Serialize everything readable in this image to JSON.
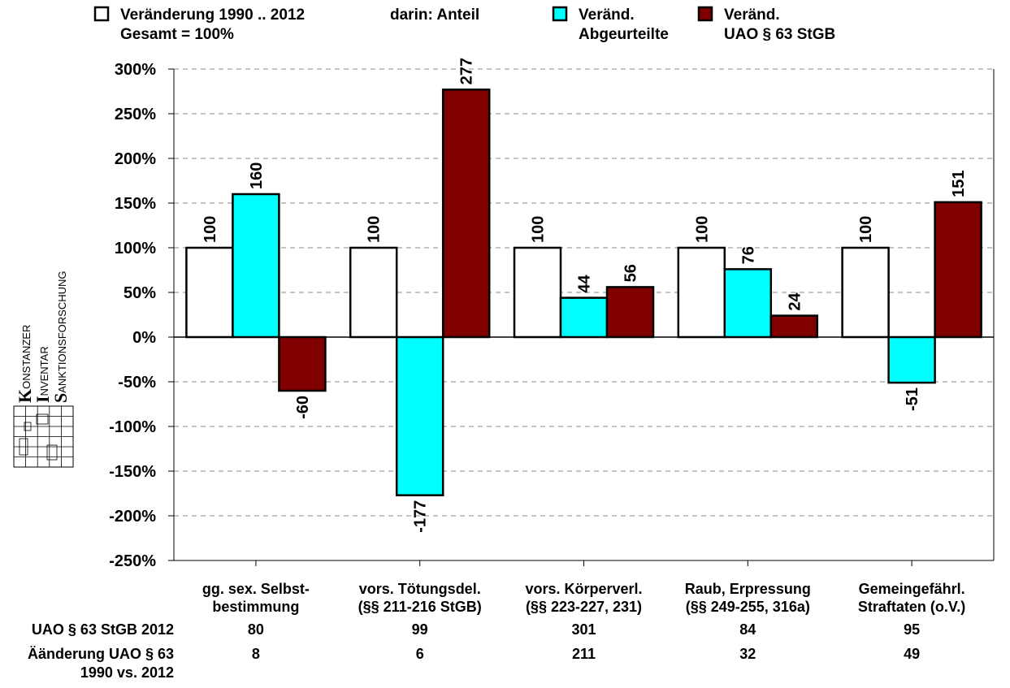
{
  "chart_data": {
    "type": "bar",
    "legend": {
      "placement": "top",
      "items": [
        {
          "lines": [
            "Veränderung 1990 .. 2012",
            "Gesamt = 100%"
          ],
          "color": "#ffffff"
        },
        {
          "lines": [
            "darin: Anteil"
          ],
          "color": null
        },
        {
          "lines": [
            "Veränd.",
            "Abgeurteilte"
          ],
          "color": "#00ffff"
        },
        {
          "lines": [
            "Veränd.",
            "UAO § 63 StGB"
          ],
          "color": "#800000"
        }
      ]
    },
    "ylim": [
      -250,
      300
    ],
    "yticks": [
      300,
      250,
      200,
      150,
      100,
      50,
      0,
      -50,
      -100,
      -150,
      -200,
      -250
    ],
    "ytick_labels": [
      "300%",
      "250%",
      "200%",
      "150%",
      "100%",
      "50%",
      "0%",
      "-50%",
      "-100%",
      "-150%",
      "-200%",
      "-250%"
    ],
    "grid": "dashed horizontal",
    "categories": [
      [
        "gg. sex. Selbst-",
        "bestimmung"
      ],
      [
        "vors. Tötungsdel.",
        "(§§ 211-216 StGB)"
      ],
      [
        "vors. Körperverl.",
        "(§§ 223-227, 231)"
      ],
      [
        "Raub, Erpressung",
        "(§§ 249-255, 316a)"
      ],
      [
        "Gemeingefährl.",
        "Straftaten (o.V.)"
      ]
    ],
    "series": [
      {
        "name": "Veränderung 1990 .. 2012 Gesamt = 100%",
        "color": "#ffffff",
        "values": [
          100,
          100,
          100,
          100,
          100
        ]
      },
      {
        "name": "Veränd. Abgeurteilte",
        "color": "#00ffff",
        "values": [
          160,
          -177,
          44,
          76,
          -51
        ]
      },
      {
        "name": "Veränd. UAO § 63 StGB",
        "color": "#800000",
        "values": [
          -60,
          277,
          56,
          24,
          151
        ]
      }
    ],
    "table": {
      "rows": [
        {
          "label": [
            "UAO § 63 StGB 2012"
          ],
          "values": [
            "80",
            "99",
            "301",
            "84",
            "95"
          ]
        },
        {
          "label": [
            "Äänderung UAO § 63",
            "1990 vs. 2012"
          ],
          "values": [
            "8",
            "6",
            "211",
            "32",
            "49"
          ]
        }
      ]
    }
  },
  "logo": {
    "lines": [
      {
        "initial": "K",
        "rest": "ONSTANZER"
      },
      {
        "initial": "I",
        "rest": "NVENTAR"
      },
      {
        "initial": "S",
        "rest": "ANKTIONSFORSCHUNG"
      }
    ]
  }
}
